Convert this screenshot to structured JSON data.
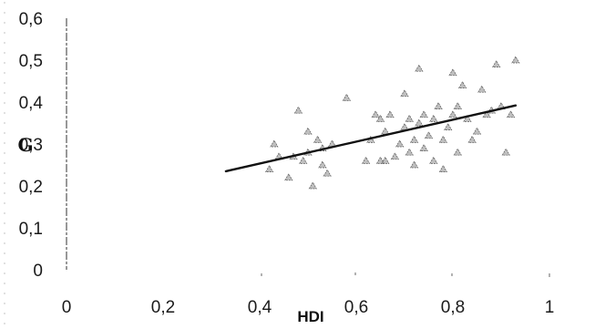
{
  "chart_data": {
    "type": "scatter",
    "xlabel": "HDI",
    "ylabel": "G",
    "xlim": [
      0,
      1
    ],
    "ylim": [
      0,
      0.6
    ],
    "x_ticks": [
      "0",
      "0,2",
      "0,4",
      "0,6",
      "0,8",
      "1"
    ],
    "y_ticks": [
      "0",
      "0,1",
      "0,2",
      "0,3",
      "0,4",
      "0,5",
      "0,6"
    ],
    "grid": false,
    "legend": "none",
    "trendline": {
      "x": [
        0.33,
        0.93
      ],
      "y": [
        0.235,
        0.392
      ]
    },
    "series": [
      {
        "points": [
          [
            0.42,
            0.24
          ],
          [
            0.43,
            0.3
          ],
          [
            0.44,
            0.27
          ],
          [
            0.46,
            0.22
          ],
          [
            0.47,
            0.27
          ],
          [
            0.48,
            0.38
          ],
          [
            0.49,
            0.26
          ],
          [
            0.5,
            0.33
          ],
          [
            0.5,
            0.28
          ],
          [
            0.51,
            0.2
          ],
          [
            0.52,
            0.31
          ],
          [
            0.53,
            0.29
          ],
          [
            0.53,
            0.25
          ],
          [
            0.54,
            0.23
          ],
          [
            0.55,
            0.3
          ],
          [
            0.58,
            0.41
          ],
          [
            0.62,
            0.26
          ],
          [
            0.63,
            0.31
          ],
          [
            0.64,
            0.37
          ],
          [
            0.65,
            0.36
          ],
          [
            0.66,
            0.33
          ],
          [
            0.66,
            0.26
          ],
          [
            0.67,
            0.37
          ],
          [
            0.68,
            0.27
          ],
          [
            0.69,
            0.3
          ],
          [
            0.7,
            0.34
          ],
          [
            0.7,
            0.42
          ],
          [
            0.71,
            0.36
          ],
          [
            0.71,
            0.28
          ],
          [
            0.72,
            0.31
          ],
          [
            0.72,
            0.25
          ],
          [
            0.73,
            0.48
          ],
          [
            0.73,
            0.35
          ],
          [
            0.74,
            0.37
          ],
          [
            0.74,
            0.29
          ],
          [
            0.75,
            0.32
          ],
          [
            0.76,
            0.26
          ],
          [
            0.76,
            0.36
          ],
          [
            0.77,
            0.39
          ],
          [
            0.78,
            0.31
          ],
          [
            0.78,
            0.24
          ],
          [
            0.79,
            0.34
          ],
          [
            0.8,
            0.47
          ],
          [
            0.8,
            0.37
          ],
          [
            0.81,
            0.28
          ],
          [
            0.81,
            0.39
          ],
          [
            0.82,
            0.44
          ],
          [
            0.83,
            0.36
          ],
          [
            0.84,
            0.31
          ],
          [
            0.85,
            0.33
          ],
          [
            0.86,
            0.43
          ],
          [
            0.87,
            0.37
          ],
          [
            0.88,
            0.38
          ],
          [
            0.9,
            0.39
          ],
          [
            0.91,
            0.28
          ],
          [
            0.92,
            0.37
          ],
          [
            0.89,
            0.49
          ],
          [
            0.93,
            0.5
          ],
          [
            0.65,
            0.26
          ]
        ]
      }
    ]
  }
}
